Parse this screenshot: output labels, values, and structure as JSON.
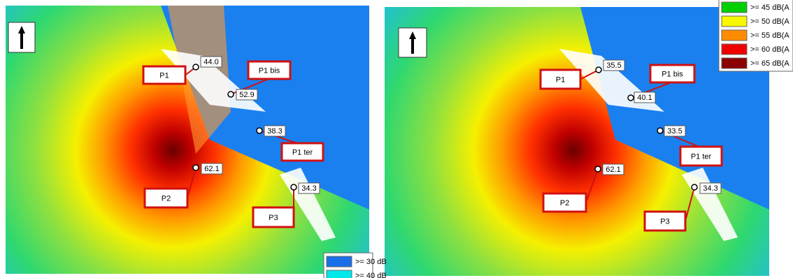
{
  "panels": [
    {
      "points": [
        {
          "label": "P1",
          "value": "44.0"
        },
        {
          "label": "P1 bis",
          "value": "52.9"
        },
        {
          "label": "P1 ter",
          "value": "38.3"
        },
        {
          "label": "P2",
          "value": "62.1"
        },
        {
          "label": "P3",
          "value": "34.3"
        }
      ],
      "legend": [
        ">= 30 dB",
        ">= 40 dB"
      ]
    },
    {
      "points": [
        {
          "label": "P1",
          "value": "35.5"
        },
        {
          "label": "P1 bis",
          "value": "40.1"
        },
        {
          "label": "P1 ter",
          "value": "33.5"
        },
        {
          "label": "P2",
          "value": "62.1"
        },
        {
          "label": "P3",
          "value": "34.3"
        }
      ],
      "legend": [
        ">= 45 dB(A",
        ">= 50 dB(A",
        ">= 55 dB(A",
        ">= 60 dB(A",
        ">= 65 dB(A"
      ]
    }
  ]
}
